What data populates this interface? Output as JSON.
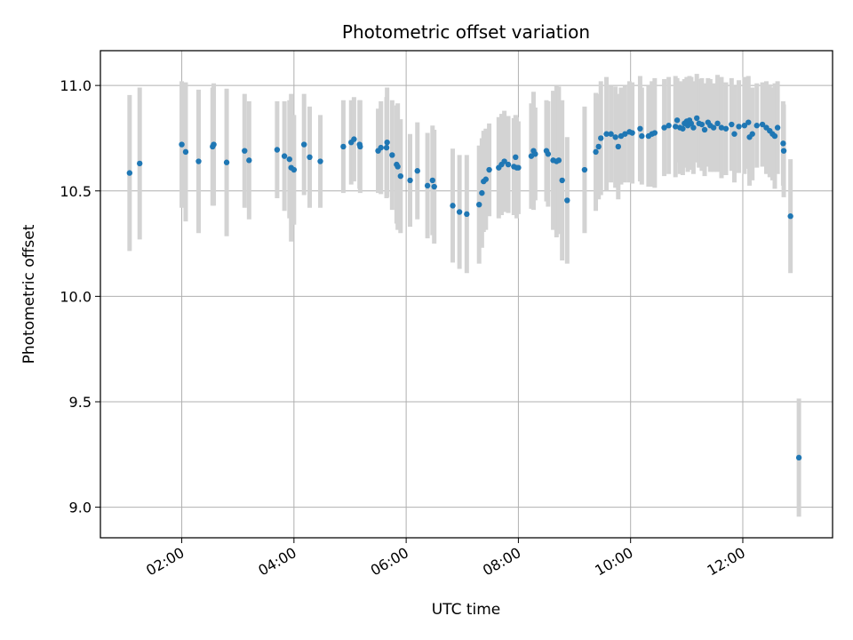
{
  "chart_data": {
    "type": "scatter",
    "title": "Photometric offset variation",
    "xlabel": "UTC time",
    "ylabel": "Photometric offset",
    "x_unit": "hours UTC",
    "xlim": [
      0.55,
      13.6
    ],
    "ylim": [
      8.855,
      11.165
    ],
    "x_ticks": [
      {
        "value": 2,
        "label": "02:00"
      },
      {
        "value": 4,
        "label": "04:00"
      },
      {
        "value": 6,
        "label": "06:00"
      },
      {
        "value": 8,
        "label": "08:00"
      },
      {
        "value": 10,
        "label": "10:00"
      },
      {
        "value": 12,
        "label": "12:00"
      }
    ],
    "y_ticks": [
      {
        "value": 9.0,
        "label": "9.0"
      },
      {
        "value": 9.5,
        "label": "9.5"
      },
      {
        "value": 10.0,
        "label": "10.0"
      },
      {
        "value": 10.5,
        "label": "10.5"
      },
      {
        "value": 11.0,
        "label": "11.0"
      }
    ],
    "grid": true,
    "point_color": "#1f77b4",
    "errorbar_color": "#d3d3d3",
    "series": [
      {
        "x": [
          1.07,
          1.25,
          2.0,
          2.07,
          2.3,
          2.55,
          2.57,
          2.8,
          3.12,
          3.2,
          3.7,
          3.83,
          3.92,
          3.95,
          4.0,
          4.18,
          4.28,
          4.47,
          4.88,
          5.02,
          5.07,
          5.17,
          5.18,
          5.5,
          5.55,
          5.65,
          5.66,
          5.75,
          5.83,
          5.85,
          5.9,
          6.07,
          6.2,
          6.38,
          6.47,
          6.5,
          6.83,
          6.95,
          7.08,
          7.3,
          7.35,
          7.38,
          7.42,
          7.48,
          7.65,
          7.7,
          7.75,
          7.82,
          7.92,
          7.95,
          7.97,
          8.0,
          8.23,
          8.27,
          8.3,
          8.5,
          8.53,
          8.62,
          8.68,
          8.72,
          8.78,
          8.87,
          9.18,
          9.38,
          9.43,
          9.47,
          9.57,
          9.65,
          9.73,
          9.78,
          9.83,
          9.9,
          9.98,
          10.03,
          10.17,
          10.2,
          10.32,
          10.38,
          10.43,
          10.6,
          10.68,
          10.8,
          10.83,
          10.88,
          10.93,
          10.96,
          11.0,
          11.02,
          11.05,
          11.08,
          11.12,
          11.18,
          11.22,
          11.27,
          11.32,
          11.38,
          11.42,
          11.48,
          11.55,
          11.62,
          11.7,
          11.8,
          11.85,
          11.93,
          12.03,
          12.1,
          12.12,
          12.17,
          12.25,
          12.35,
          12.42,
          12.48,
          12.53,
          12.57,
          12.62,
          12.72,
          12.73,
          12.85,
          13.0
        ],
        "y": [
          10.585,
          10.63,
          10.72,
          10.685,
          10.64,
          10.71,
          10.72,
          10.635,
          10.69,
          10.645,
          10.695,
          10.665,
          10.65,
          10.61,
          10.6,
          10.72,
          10.66,
          10.64,
          10.71,
          10.73,
          10.745,
          10.72,
          10.71,
          10.69,
          10.705,
          10.705,
          10.73,
          10.67,
          10.625,
          10.615,
          10.57,
          10.55,
          10.595,
          10.525,
          10.55,
          10.52,
          10.43,
          10.4,
          10.39,
          10.435,
          10.49,
          10.545,
          10.555,
          10.6,
          10.61,
          10.625,
          10.64,
          10.625,
          10.615,
          10.66,
          10.61,
          10.61,
          10.665,
          10.69,
          10.675,
          10.69,
          10.675,
          10.645,
          10.64,
          10.645,
          10.55,
          10.455,
          10.6,
          10.685,
          10.71,
          10.75,
          10.77,
          10.77,
          10.755,
          10.71,
          10.76,
          10.77,
          10.78,
          10.775,
          10.795,
          10.76,
          10.76,
          10.77,
          10.775,
          10.8,
          10.81,
          10.805,
          10.835,
          10.8,
          10.795,
          10.82,
          10.83,
          10.81,
          10.835,
          10.82,
          10.8,
          10.845,
          10.82,
          10.815,
          10.79,
          10.825,
          10.81,
          10.8,
          10.82,
          10.8,
          10.795,
          10.815,
          10.77,
          10.805,
          10.81,
          10.825,
          10.755,
          10.77,
          10.81,
          10.815,
          10.8,
          10.785,
          10.77,
          10.76,
          10.8,
          10.725,
          10.69,
          10.38,
          9.235
        ],
        "err": [
          0.37,
          0.36,
          0.3,
          0.33,
          0.34,
          0.28,
          0.29,
          0.35,
          0.27,
          0.28,
          0.23,
          0.26,
          0.28,
          0.35,
          0.26,
          0.24,
          0.24,
          0.22,
          0.22,
          0.2,
          0.2,
          0.21,
          0.22,
          0.2,
          0.22,
          0.24,
          0.26,
          0.26,
          0.28,
          0.3,
          0.27,
          0.22,
          0.23,
          0.25,
          0.26,
          0.27,
          0.27,
          0.27,
          0.28,
          0.28,
          0.26,
          0.24,
          0.24,
          0.22,
          0.24,
          0.24,
          0.24,
          0.23,
          0.23,
          0.2,
          0.24,
          0.22,
          0.25,
          0.28,
          0.22,
          0.24,
          0.25,
          0.33,
          0.36,
          0.35,
          0.38,
          0.3,
          0.3,
          0.28,
          0.25,
          0.27,
          0.27,
          0.23,
          0.24,
          0.25,
          0.23,
          0.23,
          0.24,
          0.24,
          0.25,
          0.23,
          0.24,
          0.25,
          0.26,
          0.23,
          0.23,
          0.24,
          0.2,
          0.22,
          0.22,
          0.21,
          0.21,
          0.22,
          0.21,
          0.22,
          0.22,
          0.21,
          0.21,
          0.22,
          0.22,
          0.21,
          0.22,
          0.21,
          0.23,
          0.24,
          0.22,
          0.22,
          0.23,
          0.22,
          0.23,
          0.22,
          0.23,
          0.22,
          0.2,
          0.2,
          0.22,
          0.22,
          0.22,
          0.25,
          0.22,
          0.2,
          0.22,
          0.27,
          0.28
        ]
      }
    ]
  }
}
